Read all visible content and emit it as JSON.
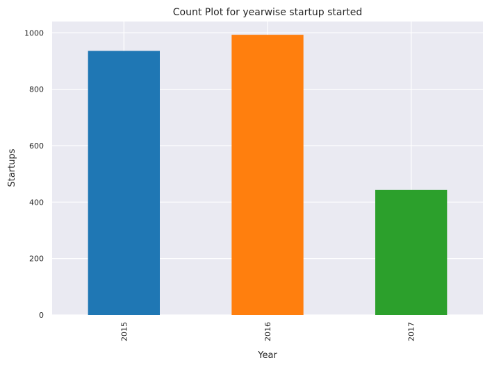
{
  "chart_data": {
    "type": "bar",
    "title": "Count Plot for yearwise startup started",
    "xlabel": "Year",
    "ylabel": "Startups",
    "categories": [
      "2015",
      "2016",
      "2017"
    ],
    "values": [
      936,
      993,
      443
    ],
    "colors": [
      "#1f77b4",
      "#ff7f0e",
      "#2ca02c"
    ],
    "ylim": [
      0,
      1040
    ],
    "yticks": [
      0,
      200,
      400,
      600,
      800,
      1000
    ],
    "grid": true,
    "background": "#eaeaf2",
    "grid_color": "#ffffff",
    "x_tick_rotation": "vertical"
  }
}
